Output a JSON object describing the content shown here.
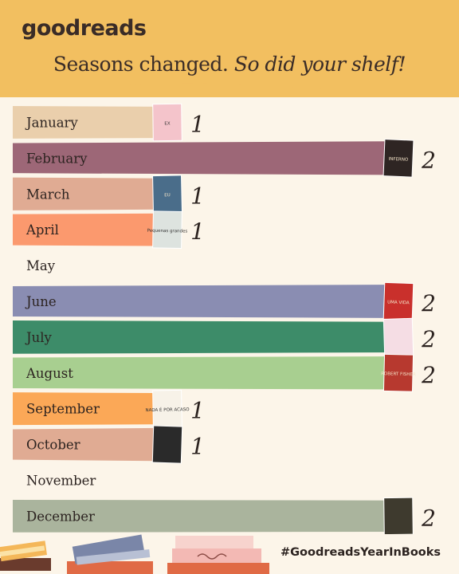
{
  "brand": {
    "logo": "goodreads"
  },
  "headline": {
    "main": "Seasons changed.",
    "italic": "So did your shelf!"
  },
  "hashtag": "#GoodreadsYearInBooks",
  "chart_data": {
    "type": "bar",
    "orientation": "horizontal",
    "categories": [
      "January",
      "February",
      "March",
      "April",
      "May",
      "June",
      "July",
      "August",
      "September",
      "October",
      "November",
      "December"
    ],
    "values": [
      1,
      2,
      1,
      1,
      0,
      2,
      2,
      2,
      1,
      1,
      0,
      2
    ],
    "colors": [
      "#eacfac",
      "#9d6777",
      "#e0ab93",
      "#fb996e",
      "",
      "#8a8db2",
      "#3d8c69",
      "#a8cf90",
      "#fba857",
      "#e0ab93",
      "",
      "#aab49d"
    ],
    "covers": [
      {
        "color": "#f4c4cb",
        "text": "EX"
      },
      {
        "color": "#2e2523",
        "text": "INFERNO"
      },
      {
        "color": "#4a6d8a",
        "text": "EU"
      },
      {
        "color": "#dde3df",
        "text": "Pequenas grandes"
      },
      null,
      {
        "color": "#c9302c",
        "text": "UMA VIDA"
      },
      {
        "color": "#f5dde4",
        "text": ""
      },
      {
        "color": "#b7392f",
        "text": "ROBERT FISHER"
      },
      {
        "color": "#f7f2e8",
        "text": "NADA É POR ACASO"
      },
      {
        "color": "#2a2a2a",
        "text": ""
      },
      null,
      {
        "color": "#3e3a2e",
        "text": ""
      }
    ]
  }
}
